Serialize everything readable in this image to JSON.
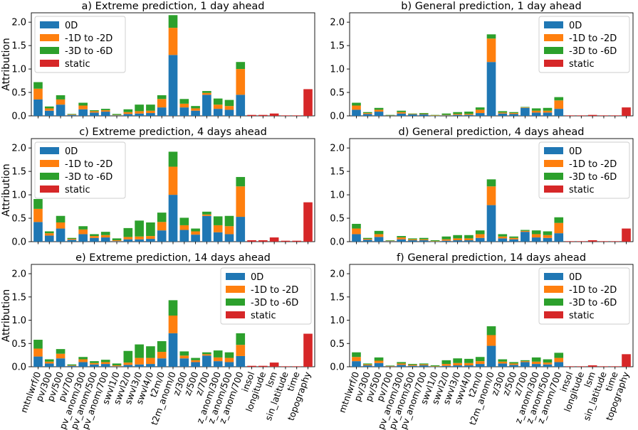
{
  "figure": {
    "ylabel": "Attribution"
  },
  "legend": {
    "entries": [
      {
        "label": "0D",
        "color": "#1f77b4"
      },
      {
        "label": "-1D to -2D",
        "color": "#ff7f0e"
      },
      {
        "label": "-3D to -6D",
        "color": "#2ca02c"
      },
      {
        "label": "static",
        "color": "#d62728"
      }
    ]
  },
  "chart_data": [
    {
      "type": "bar",
      "title": "a) Extreme prediction, 1 day ahead",
      "ylabel": "Attribution",
      "ylim": [
        0,
        2.2
      ],
      "yticks": [
        0.0,
        0.5,
        1.0,
        1.5,
        2.0
      ],
      "legend_position": "top-left",
      "categories": [
        "mtnlwrf/0",
        "pv/300",
        "pv/500",
        "pv/700",
        "pv_anom/300",
        "pv_anom/500",
        "pv_anom/700",
        "swvl1/0",
        "swvl2/0",
        "swvl3/0",
        "swvl4/0",
        "t2m/0",
        "t2m_anom/0",
        "z/300",
        "z/500",
        "z/700",
        "z_anom/300",
        "z_anom/500",
        "z_anom/700",
        "insol",
        "longitude",
        "lsm",
        "sin_latitude",
        "time",
        "topography"
      ],
      "series": [
        {
          "name": "0D",
          "values": [
            0.35,
            0.11,
            0.24,
            0.02,
            0.14,
            0.07,
            0.09,
            0.01,
            0.04,
            0.05,
            0.06,
            0.18,
            1.3,
            0.18,
            0.11,
            0.45,
            0.15,
            0.13,
            0.45,
            0,
            0,
            0,
            0,
            0,
            0
          ]
        },
        {
          "name": "-1D to -2D",
          "values": [
            0.23,
            0.05,
            0.11,
            0.01,
            0.08,
            0.03,
            0.03,
            0.01,
            0.04,
            0.05,
            0.05,
            0.18,
            0.58,
            0.08,
            0.05,
            0.04,
            0.09,
            0.08,
            0.55,
            0,
            0,
            0,
            0,
            0,
            0
          ]
        },
        {
          "name": "-3D to -6D",
          "values": [
            0.14,
            0.04,
            0.09,
            0.01,
            0.06,
            0.02,
            0.03,
            0.02,
            0.06,
            0.14,
            0.13,
            0.08,
            0.27,
            0.1,
            0.05,
            0.04,
            0.13,
            0.13,
            0.15,
            0,
            0,
            0,
            0,
            0,
            0
          ]
        },
        {
          "name": "static",
          "values": [
            0,
            0,
            0,
            0,
            0,
            0,
            0,
            0,
            0,
            0,
            0,
            0,
            0,
            0,
            0,
            0,
            0,
            0,
            0,
            0.02,
            0.02,
            0.05,
            0.01,
            0.01,
            0.57
          ]
        }
      ]
    },
    {
      "type": "bar",
      "title": "b) General prediction, 1 day ahead",
      "ylim": [
        0,
        2.2
      ],
      "yticks": [
        0.0,
        0.5,
        1.0,
        1.5,
        2.0
      ],
      "legend_position": "top-right",
      "categories": [
        "mtnlwrf/0",
        "pv/300",
        "pv/500",
        "pv/700",
        "pv_anom/300",
        "pv_anom/500",
        "pv_anom/700",
        "swvl1/0",
        "swvl2/0",
        "swvl3/0",
        "swvl4/0",
        "t2m/0",
        "t2m_anom/0",
        "z/300",
        "z/500",
        "z/700",
        "z_anom/300",
        "z_anom/500",
        "z_anom/700",
        "insol",
        "longitude",
        "lsm",
        "sin_latitude",
        "time",
        "topography"
      ],
      "series": [
        {
          "name": "0D",
          "values": [
            0.13,
            0.04,
            0.09,
            0.01,
            0.05,
            0.03,
            0.03,
            0.005,
            0.01,
            0.02,
            0.02,
            0.06,
            1.15,
            0.05,
            0.04,
            0.17,
            0.07,
            0.07,
            0.15,
            0,
            0,
            0,
            0,
            0,
            0
          ]
        },
        {
          "name": "-1D to -2D",
          "values": [
            0.09,
            0.02,
            0.04,
            0.005,
            0.03,
            0.01,
            0.01,
            0.005,
            0.01,
            0.02,
            0.02,
            0.07,
            0.5,
            0.02,
            0.02,
            0.01,
            0.04,
            0.04,
            0.18,
            0,
            0,
            0,
            0,
            0,
            0
          ]
        },
        {
          "name": "-3D to -6D",
          "values": [
            0.06,
            0.02,
            0.04,
            0.005,
            0.03,
            0.01,
            0.02,
            0.01,
            0.03,
            0.04,
            0.05,
            0.05,
            0.09,
            0.03,
            0.02,
            0.01,
            0.05,
            0.06,
            0.07,
            0,
            0,
            0,
            0,
            0,
            0
          ]
        },
        {
          "name": "static",
          "values": [
            0,
            0,
            0,
            0,
            0,
            0,
            0,
            0,
            0,
            0,
            0,
            0,
            0,
            0,
            0,
            0,
            0,
            0,
            0,
            0.01,
            0.01,
            0.02,
            0.01,
            0.01,
            0.18
          ]
        }
      ]
    },
    {
      "type": "bar",
      "title": "c) Extreme prediction, 4 days ahead",
      "ylabel": "Attribution",
      "ylim": [
        0,
        2.2
      ],
      "yticks": [
        0.0,
        0.5,
        1.0,
        1.5,
        2.0
      ],
      "legend_position": "top-left",
      "categories": [
        "mtnlwrf/0",
        "pv/300",
        "pv/500",
        "pv/700",
        "pv_anom/300",
        "pv_anom/500",
        "pv_anom/700",
        "swvl1/0",
        "swvl2/0",
        "swvl3/0",
        "swvl4/0",
        "t2m/0",
        "t2m_anom/0",
        "z/300",
        "z/500",
        "z/700",
        "z_anom/300",
        "z_anom/500",
        "z_anom/700",
        "insol",
        "longitude",
        "lsm",
        "sin_latitude",
        "time",
        "topography"
      ],
      "series": [
        {
          "name": "0D",
          "values": [
            0.42,
            0.13,
            0.28,
            0.04,
            0.16,
            0.08,
            0.09,
            0.01,
            0.05,
            0.05,
            0.06,
            0.24,
            1.0,
            0.25,
            0.15,
            0.55,
            0.2,
            0.16,
            0.53,
            0,
            0,
            0,
            0,
            0,
            0
          ]
        },
        {
          "name": "-1D to -2D",
          "values": [
            0.28,
            0.05,
            0.13,
            0.02,
            0.1,
            0.04,
            0.05,
            0.02,
            0.05,
            0.06,
            0.06,
            0.18,
            0.6,
            0.1,
            0.07,
            0.03,
            0.15,
            0.17,
            0.65,
            0,
            0,
            0,
            0,
            0,
            0
          ]
        },
        {
          "name": "-3D to -6D",
          "values": [
            0.21,
            0.04,
            0.14,
            0.02,
            0.07,
            0.04,
            0.07,
            0.04,
            0.19,
            0.34,
            0.29,
            0.2,
            0.32,
            0.16,
            0.06,
            0.06,
            0.19,
            0.22,
            0.2,
            0,
            0,
            0,
            0,
            0,
            0
          ]
        },
        {
          "name": "static",
          "values": [
            0,
            0,
            0,
            0,
            0,
            0,
            0,
            0,
            0,
            0,
            0,
            0,
            0,
            0,
            0,
            0,
            0,
            0,
            0,
            0.03,
            0.03,
            0.09,
            0.02,
            0.02,
            0.84
          ]
        }
      ]
    },
    {
      "type": "bar",
      "title": "d) General prediction, 4 days ahead",
      "ylim": [
        0,
        2.2
      ],
      "yticks": [
        0.0,
        0.5,
        1.0,
        1.5,
        2.0
      ],
      "legend_position": "top-right",
      "categories": [
        "mtnlwrf/0",
        "pv/300",
        "pv/500",
        "pv/700",
        "pv_anom/300",
        "pv_anom/500",
        "pv_anom/700",
        "swvl1/0",
        "swvl2/0",
        "swvl3/0",
        "swvl4/0",
        "t2m/0",
        "t2m_anom/0",
        "z/300",
        "z/500",
        "z/700",
        "z_anom/300",
        "z_anom/500",
        "z_anom/700",
        "insol",
        "longitude",
        "lsm",
        "sin_latitude",
        "time",
        "topography"
      ],
      "series": [
        {
          "name": "0D",
          "values": [
            0.16,
            0.04,
            0.1,
            0.01,
            0.05,
            0.03,
            0.03,
            0.005,
            0.02,
            0.03,
            0.03,
            0.08,
            0.78,
            0.07,
            0.05,
            0.21,
            0.09,
            0.08,
            0.18,
            0,
            0,
            0,
            0,
            0,
            0
          ]
        },
        {
          "name": "-1D to -2D",
          "values": [
            0.12,
            0.02,
            0.06,
            0.01,
            0.04,
            0.02,
            0.02,
            0.005,
            0.03,
            0.04,
            0.04,
            0.08,
            0.4,
            0.04,
            0.03,
            0.02,
            0.07,
            0.06,
            0.22,
            0,
            0,
            0,
            0,
            0,
            0
          ]
        },
        {
          "name": "-3D to -6D",
          "values": [
            0.1,
            0.02,
            0.07,
            0.01,
            0.03,
            0.02,
            0.03,
            0.02,
            0.06,
            0.07,
            0.07,
            0.08,
            0.15,
            0.05,
            0.03,
            0.02,
            0.08,
            0.08,
            0.12,
            0,
            0,
            0,
            0,
            0,
            0
          ]
        },
        {
          "name": "static",
          "values": [
            0,
            0,
            0,
            0,
            0,
            0,
            0,
            0,
            0,
            0,
            0,
            0,
            0,
            0,
            0,
            0,
            0,
            0,
            0,
            0.01,
            0.01,
            0.03,
            0.01,
            0.01,
            0.28
          ]
        }
      ]
    },
    {
      "type": "bar",
      "title": "e) Extreme prediction, 14 days ahead",
      "ylabel": "Attribution",
      "ylim": [
        0,
        2.2
      ],
      "yticks": [
        0.0,
        0.5,
        1.0,
        1.5,
        2.0
      ],
      "legend_position": "top-right",
      "categories": [
        "mtnlwrf/0",
        "pv/300",
        "pv/500",
        "pv/700",
        "pv_anom/300",
        "pv_anom/500",
        "pv_anom/700",
        "swvl1/0",
        "swvl2/0",
        "swvl3/0",
        "swvl4/0",
        "t2m/0",
        "t2m_anom/0",
        "z/300",
        "z/500",
        "z/700",
        "z_anom/300",
        "z_anom/500",
        "z_anom/700",
        "insol",
        "longitude",
        "lsm",
        "sin_latitude",
        "time",
        "topography"
      ],
      "series": [
        {
          "name": "0D",
          "values": [
            0.22,
            0.07,
            0.18,
            0.02,
            0.1,
            0.05,
            0.06,
            0.01,
            0.04,
            0.05,
            0.06,
            0.18,
            0.72,
            0.18,
            0.1,
            0.24,
            0.12,
            0.1,
            0.23,
            0,
            0,
            0,
            0,
            0,
            0
          ]
        },
        {
          "name": "-1D to -2D",
          "values": [
            0.17,
            0.04,
            0.1,
            0.01,
            0.06,
            0.03,
            0.04,
            0.02,
            0.05,
            0.14,
            0.13,
            0.14,
            0.38,
            0.06,
            0.04,
            0.03,
            0.08,
            0.09,
            0.24,
            0,
            0,
            0,
            0,
            0,
            0
          ]
        },
        {
          "name": "-3D to -6D",
          "values": [
            0.19,
            0.05,
            0.1,
            0.02,
            0.05,
            0.04,
            0.05,
            0.04,
            0.25,
            0.29,
            0.25,
            0.23,
            0.33,
            0.09,
            0.05,
            0.04,
            0.15,
            0.12,
            0.25,
            0,
            0,
            0,
            0,
            0,
            0
          ]
        },
        {
          "name": "static",
          "values": [
            0,
            0,
            0,
            0,
            0,
            0,
            0,
            0,
            0,
            0,
            0,
            0,
            0,
            0,
            0,
            0,
            0,
            0,
            0,
            0.02,
            0.02,
            0.09,
            0.01,
            0.01,
            0.71
          ]
        }
      ]
    },
    {
      "type": "bar",
      "title": "f) General prediction, 14 days ahead",
      "ylim": [
        0,
        2.2
      ],
      "yticks": [
        0.0,
        0.5,
        1.0,
        1.5,
        2.0
      ],
      "legend_position": "top-right",
      "categories": [
        "mtnlwrf/0",
        "pv/300",
        "pv/500",
        "pv/700",
        "pv_anom/300",
        "pv_anom/500",
        "pv_anom/700",
        "swvl1/0",
        "swvl2/0",
        "swvl3/0",
        "swvl4/0",
        "t2m/0",
        "t2m_anom/0",
        "z/300",
        "z/500",
        "z/700",
        "z_anom/300",
        "z_anom/500",
        "z_anom/700",
        "insol",
        "longitude",
        "lsm",
        "sin_latitude",
        "time",
        "topography"
      ],
      "series": [
        {
          "name": "0D",
          "values": [
            0.12,
            0.03,
            0.08,
            0.01,
            0.04,
            0.02,
            0.03,
            0.005,
            0.02,
            0.03,
            0.03,
            0.06,
            0.45,
            0.07,
            0.04,
            0.1,
            0.06,
            0.05,
            0.1,
            0,
            0,
            0,
            0,
            0,
            0
          ]
        },
        {
          "name": "-1D to -2D",
          "values": [
            0.09,
            0.02,
            0.05,
            0.005,
            0.03,
            0.02,
            0.02,
            0.005,
            0.04,
            0.05,
            0.05,
            0.06,
            0.23,
            0.04,
            0.03,
            0.02,
            0.05,
            0.04,
            0.09,
            0,
            0,
            0,
            0,
            0,
            0
          ]
        },
        {
          "name": "-3D to -6D",
          "values": [
            0.1,
            0.02,
            0.07,
            0.01,
            0.03,
            0.02,
            0.02,
            0.02,
            0.08,
            0.1,
            0.09,
            0.09,
            0.19,
            0.05,
            0.03,
            0.02,
            0.09,
            0.07,
            0.11,
            0,
            0,
            0,
            0,
            0,
            0
          ]
        },
        {
          "name": "static",
          "values": [
            0,
            0,
            0,
            0,
            0,
            0,
            0,
            0,
            0,
            0,
            0,
            0,
            0,
            0,
            0,
            0,
            0,
            0,
            0,
            0.01,
            0.01,
            0.03,
            0.01,
            0.01,
            0.27
          ]
        }
      ]
    }
  ]
}
